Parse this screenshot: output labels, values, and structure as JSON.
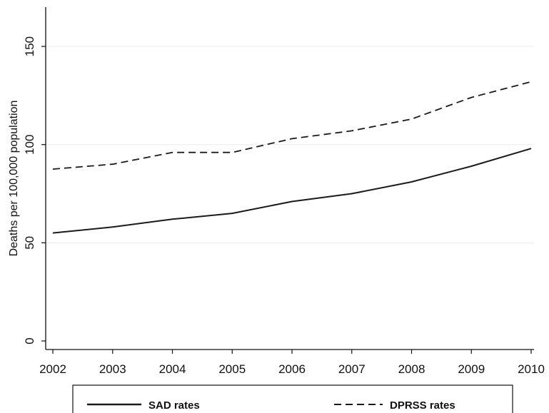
{
  "chart_data": {
    "type": "line",
    "title": "",
    "xlabel": "",
    "ylabel": "Deaths per 100,000 population",
    "x": [
      2002,
      2003,
      2004,
      2005,
      2006,
      2007,
      2008,
      2009,
      2010
    ],
    "xticks": [
      "2002",
      "2003",
      "2004",
      "2005",
      "2006",
      "2007",
      "2008",
      "2009",
      "2010"
    ],
    "yticks": [
      "0",
      "50",
      "100",
      "150"
    ],
    "ylim": [
      0,
      170
    ],
    "xlim": [
      2002,
      2010
    ],
    "grid": true,
    "legend_position": "bottom",
    "series": [
      {
        "name": "SAD rates",
        "style": "solid",
        "color": "#1a1a1a",
        "values": [
          55,
          58,
          62,
          65,
          71,
          75,
          81,
          89,
          98
        ]
      },
      {
        "name": "DPRSS rates",
        "style": "dashed",
        "color": "#1a1a1a",
        "values": [
          87.5,
          90,
          96,
          96,
          103,
          107,
          113,
          124,
          132
        ]
      }
    ]
  }
}
